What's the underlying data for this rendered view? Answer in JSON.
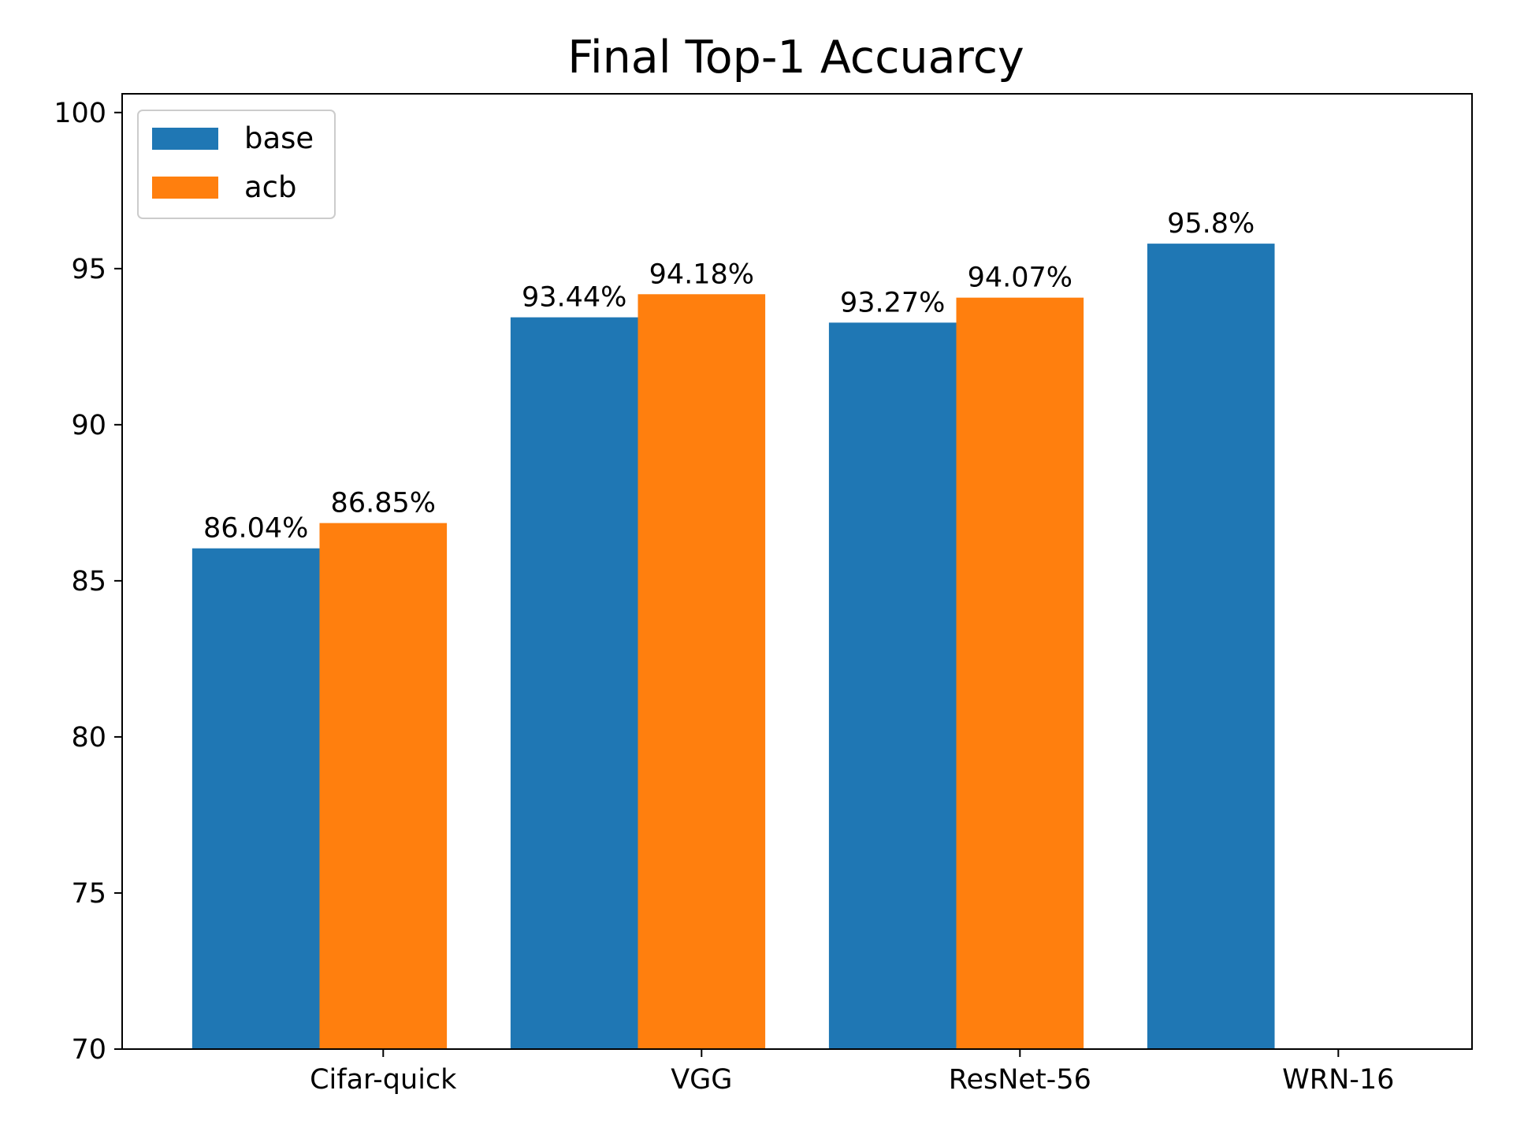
{
  "chart_data": {
    "type": "bar",
    "title": "Final Top-1 Accuarcy",
    "xlabel": "",
    "ylabel": "",
    "categories": [
      "Cifar-quick",
      "VGG",
      "ResNet-56",
      "WRN-16"
    ],
    "series": [
      {
        "name": "base",
        "color": "#1f77b4",
        "values": [
          86.04,
          93.44,
          93.27,
          95.8
        ],
        "labels": [
          "86.04%",
          "93.44%",
          "93.27%",
          "95.8%"
        ]
      },
      {
        "name": "acb",
        "color": "#ff7f0e",
        "values": [
          86.85,
          94.18,
          94.07,
          null
        ],
        "labels": [
          "86.85%",
          "94.18%",
          "94.07%",
          ""
        ]
      }
    ],
    "ylim": [
      70,
      100.6
    ],
    "yticks": [
      70,
      75,
      80,
      85,
      90,
      95,
      100
    ],
    "ytick_labels": [
      "70",
      "75",
      "80",
      "85",
      "90",
      "95",
      "100"
    ],
    "grid": false,
    "legend": "top-left"
  }
}
